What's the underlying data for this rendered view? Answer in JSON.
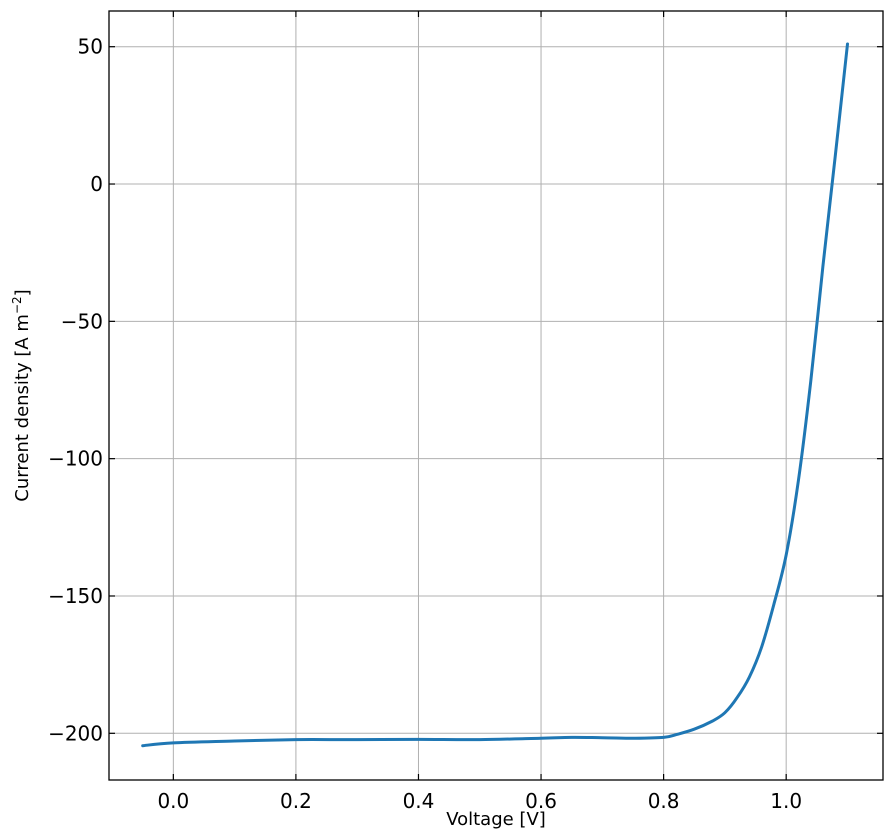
{
  "chart_data": {
    "type": "line",
    "title": "",
    "xlabel": "Voltage [V]",
    "ylabel_main": "Current density [A m",
    "ylabel_sup": "−2",
    "ylabel_close": "]",
    "xlim": [
      -0.105,
      1.158
    ],
    "ylim": [
      -217,
      63
    ],
    "xticks": [
      0.0,
      0.2,
      0.4,
      0.6,
      0.8,
      1.0
    ],
    "xtick_labels": [
      "0.0",
      "0.2",
      "0.4",
      "0.6",
      "0.8",
      "1.0"
    ],
    "yticks": [
      -200,
      -150,
      -100,
      -50,
      0,
      50
    ],
    "ytick_labels": [
      "−200",
      "−150",
      "−100",
      "−50",
      "0",
      "50"
    ],
    "grid": true,
    "line_color": "#1f77b4",
    "series": [
      {
        "x": [
          -0.05,
          0.0,
          0.1,
          0.2,
          0.3,
          0.4,
          0.5,
          0.6,
          0.65,
          0.7,
          0.75,
          0.8,
          0.82,
          0.85,
          0.88,
          0.9,
          0.92,
          0.94,
          0.96,
          0.98,
          1.0,
          1.02,
          1.04,
          1.06,
          1.08,
          1.1
        ],
        "y": [
          -204.5,
          -203.5,
          -202.8,
          -202.3,
          -202.3,
          -202.2,
          -202.3,
          -201.8,
          -201.5,
          -201.6,
          -201.8,
          -201.5,
          -200.5,
          -198.5,
          -195.5,
          -192.5,
          -187,
          -179.5,
          -168.5,
          -153,
          -135,
          -108,
          -72,
          -30,
          10,
          51
        ]
      }
    ]
  }
}
